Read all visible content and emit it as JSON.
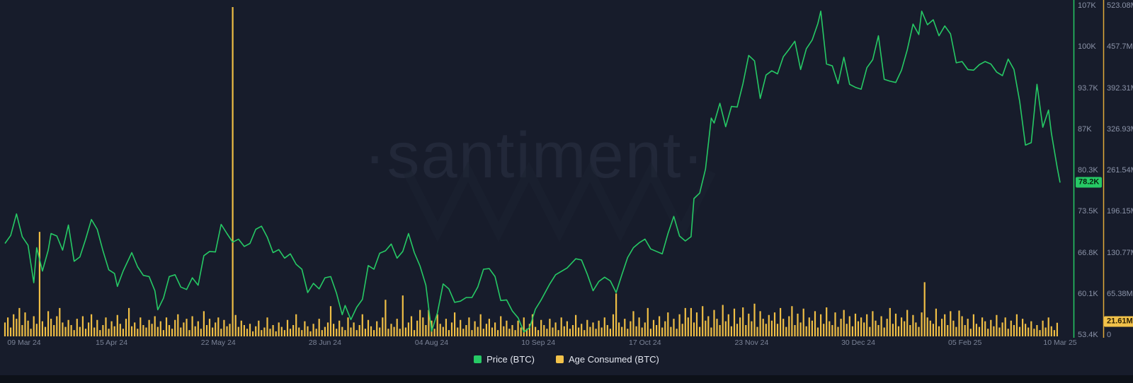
{
  "watermark": "·santiment·",
  "colors": {
    "background": "#171c2b",
    "price_line": "#26c965",
    "age_bar": "#efbe45",
    "price_axis_line": "#26c965",
    "age_axis_line": "#dfa93a",
    "axis_text": "#8b93a8",
    "legend_text": "#e4e7f0"
  },
  "legend": {
    "items": [
      {
        "label": "Price (BTC)",
        "color": "#26c965"
      },
      {
        "label": "Age Consumed (BTC)",
        "color": "#f2c24a"
      }
    ]
  },
  "chart_data": {
    "type": "line+bar",
    "title": "",
    "x_axis": {
      "tick_labels": [
        "09 Mar 24",
        "15 Apr 24",
        "22 May 24",
        "28 Jun 24",
        "04 Aug 24",
        "10 Sep 24",
        "17 Oct 24",
        "23 Nov 24",
        "30 Dec 24",
        "05 Feb 25",
        "10 Mar 25"
      ],
      "tick_day_offsets": [
        0,
        37,
        74,
        111,
        148,
        185,
        222,
        259,
        296,
        333,
        366
      ],
      "total_days": 366
    },
    "price_axis": {
      "tick_labels": [
        "107K",
        "100K",
        "93.7K",
        "87K",
        "80.3K",
        "73.5K",
        "66.8K",
        "60.1K",
        "53.4K"
      ],
      "tick_values": [
        107,
        100,
        93.7,
        87,
        80.3,
        73.5,
        66.8,
        60.1,
        53.4
      ],
      "current_label": "78.2K",
      "current_value": 78.2,
      "unit": "K USD"
    },
    "age_axis": {
      "tick_labels": [
        "523.08M",
        "457.7M",
        "392.31M",
        "326.93M",
        "261.54M",
        "196.15M",
        "130.77M",
        "65.38M",
        "0"
      ],
      "tick_values": [
        523.08,
        457.7,
        392.31,
        326.93,
        261.54,
        196.15,
        130.77,
        65.38,
        0
      ],
      "current_label": "21.61M",
      "current_value": 21.61,
      "unit": "M"
    },
    "series": [
      {
        "name": "Price (BTC)",
        "type": "line",
        "points_day_value_K": [
          [
            0,
            68.3
          ],
          [
            2,
            69.6
          ],
          [
            4,
            73.1
          ],
          [
            6,
            69.4
          ],
          [
            8,
            68.0
          ],
          [
            10,
            61.9
          ],
          [
            11,
            67.6
          ],
          [
            13,
            63.8
          ],
          [
            15,
            67.2
          ],
          [
            16,
            69.9
          ],
          [
            18,
            69.5
          ],
          [
            20,
            67.2
          ],
          [
            22,
            71.3
          ],
          [
            24,
            65.4
          ],
          [
            26,
            66.1
          ],
          [
            28,
            69.0
          ],
          [
            30,
            72.2
          ],
          [
            32,
            70.6
          ],
          [
            34,
            67.1
          ],
          [
            36,
            64.0
          ],
          [
            38,
            63.4
          ],
          [
            39,
            61.3
          ],
          [
            41,
            63.8
          ],
          [
            44,
            66.8
          ],
          [
            46,
            64.5
          ],
          [
            48,
            63.1
          ],
          [
            50,
            62.9
          ],
          [
            52,
            60.6
          ],
          [
            53,
            57.5
          ],
          [
            55,
            59.4
          ],
          [
            57,
            62.9
          ],
          [
            59,
            63.2
          ],
          [
            61,
            61.2
          ],
          [
            63,
            60.8
          ],
          [
            65,
            62.7
          ],
          [
            67,
            61.5
          ],
          [
            69,
            66.3
          ],
          [
            71,
            67.0
          ],
          [
            73,
            66.9
          ],
          [
            75,
            71.4
          ],
          [
            77,
            69.9
          ],
          [
            79,
            68.5
          ],
          [
            81,
            69.0
          ],
          [
            83,
            67.8
          ],
          [
            85,
            68.3
          ],
          [
            87,
            70.6
          ],
          [
            89,
            71.1
          ],
          [
            91,
            69.3
          ],
          [
            93,
            66.8
          ],
          [
            95,
            67.3
          ],
          [
            97,
            65.9
          ],
          [
            99,
            66.6
          ],
          [
            101,
            64.9
          ],
          [
            103,
            64.1
          ],
          [
            105,
            60.3
          ],
          [
            107,
            61.8
          ],
          [
            109,
            60.9
          ],
          [
            111,
            62.7
          ],
          [
            113,
            62.9
          ],
          [
            115,
            60.2
          ],
          [
            117,
            56.7
          ],
          [
            118,
            58.2
          ],
          [
            120,
            55.9
          ],
          [
            122,
            57.9
          ],
          [
            124,
            59.2
          ],
          [
            126,
            64.7
          ],
          [
            128,
            64.1
          ],
          [
            130,
            66.7
          ],
          [
            132,
            67.1
          ],
          [
            134,
            68.2
          ],
          [
            136,
            65.9
          ],
          [
            138,
            67.0
          ],
          [
            140,
            69.9
          ],
          [
            142,
            66.8
          ],
          [
            144,
            64.6
          ],
          [
            146,
            61.5
          ],
          [
            148,
            54.0
          ],
          [
            150,
            57.0
          ],
          [
            152,
            61.7
          ],
          [
            154,
            60.9
          ],
          [
            156,
            58.7
          ],
          [
            158,
            58.9
          ],
          [
            160,
            59.5
          ],
          [
            162,
            59.5
          ],
          [
            164,
            61.2
          ],
          [
            166,
            64.1
          ],
          [
            168,
            64.2
          ],
          [
            170,
            62.9
          ],
          [
            172,
            59.0
          ],
          [
            174,
            59.1
          ],
          [
            176,
            57.3
          ],
          [
            178,
            56.2
          ],
          [
            180,
            53.9
          ],
          [
            182,
            54.6
          ],
          [
            184,
            57.6
          ],
          [
            186,
            59.1
          ],
          [
            189,
            61.7
          ],
          [
            191,
            63.2
          ],
          [
            195,
            64.3
          ],
          [
            198,
            65.8
          ],
          [
            200,
            65.6
          ],
          [
            202,
            63.3
          ],
          [
            204,
            60.6
          ],
          [
            206,
            62.1
          ],
          [
            208,
            62.8
          ],
          [
            210,
            62.2
          ],
          [
            212,
            60.3
          ],
          [
            214,
            63.2
          ],
          [
            216,
            66.0
          ],
          [
            218,
            67.6
          ],
          [
            220,
            68.4
          ],
          [
            222,
            69.0
          ],
          [
            224,
            67.4
          ],
          [
            226,
            67.0
          ],
          [
            228,
            66.6
          ],
          [
            230,
            69.9
          ],
          [
            232,
            72.7
          ],
          [
            234,
            69.5
          ],
          [
            236,
            68.7
          ],
          [
            238,
            69.4
          ],
          [
            239,
            75.6
          ],
          [
            241,
            76.5
          ],
          [
            243,
            80.4
          ],
          [
            245,
            88.7
          ],
          [
            246,
            87.9
          ],
          [
            248,
            91.1
          ],
          [
            250,
            87.3
          ],
          [
            252,
            90.6
          ],
          [
            254,
            90.5
          ],
          [
            256,
            94.3
          ],
          [
            258,
            98.9
          ],
          [
            260,
            98.0
          ],
          [
            262,
            91.9
          ],
          [
            264,
            95.7
          ],
          [
            266,
            96.4
          ],
          [
            268,
            95.9
          ],
          [
            270,
            98.7
          ],
          [
            272,
            99.9
          ],
          [
            274,
            101.2
          ],
          [
            276,
            96.6
          ],
          [
            278,
            100.0
          ],
          [
            280,
            101.4
          ],
          [
            282,
            104.1
          ],
          [
            283,
            106.1
          ],
          [
            285,
            97.5
          ],
          [
            287,
            97.2
          ],
          [
            289,
            94.3
          ],
          [
            291,
            98.6
          ],
          [
            293,
            94.2
          ],
          [
            295,
            93.7
          ],
          [
            297,
            93.4
          ],
          [
            299,
            96.9
          ],
          [
            301,
            98.2
          ],
          [
            303,
            102.1
          ],
          [
            305,
            95.0
          ],
          [
            307,
            94.7
          ],
          [
            309,
            94.5
          ],
          [
            311,
            96.5
          ],
          [
            313,
            99.8
          ],
          [
            315,
            104.0
          ],
          [
            317,
            102.3
          ],
          [
            318,
            106.1
          ],
          [
            320,
            103.9
          ],
          [
            322,
            104.7
          ],
          [
            324,
            102.1
          ],
          [
            326,
            103.7
          ],
          [
            328,
            102.4
          ],
          [
            330,
            97.7
          ],
          [
            332,
            97.9
          ],
          [
            334,
            96.6
          ],
          [
            336,
            96.5
          ],
          [
            338,
            97.4
          ],
          [
            340,
            97.9
          ],
          [
            342,
            97.5
          ],
          [
            344,
            96.2
          ],
          [
            346,
            95.6
          ],
          [
            348,
            98.3
          ],
          [
            350,
            96.6
          ],
          [
            352,
            91.4
          ],
          [
            354,
            84.3
          ],
          [
            356,
            84.7
          ],
          [
            358,
            94.2
          ],
          [
            360,
            87.2
          ],
          [
            362,
            90.0
          ],
          [
            363,
            86.2
          ],
          [
            365,
            80.7
          ],
          [
            366,
            78.2
          ]
        ]
      },
      {
        "name": "Age Consumed (BTC)",
        "type": "bar",
        "daily_values_M": [
          22,
          30,
          14,
          35,
          28,
          45,
          18,
          38,
          25,
          12,
          32,
          20,
          166,
          24,
          15,
          40,
          28,
          18,
          32,
          45,
          22,
          15,
          26,
          18,
          10,
          28,
          15,
          32,
          12,
          22,
          35,
          14,
          26,
          10,
          18,
          30,
          12,
          24,
          16,
          34,
          20,
          12,
          28,
          45,
          16,
          22,
          12,
          30,
          18,
          14,
          26,
          20,
          32,
          15,
          24,
          10,
          30,
          18,
          12,
          26,
          35,
          14,
          22,
          28,
          10,
          32,
          16,
          24,
          12,
          40,
          18,
          28,
          14,
          22,
          30,
          12,
          26,
          16,
          20,
          523.08,
          34,
          15,
          25,
          18,
          12,
          20,
          8,
          16,
          25,
          10,
          14,
          30,
          12,
          18,
          8,
          22,
          15,
          10,
          26,
          12,
          18,
          35,
          14,
          10,
          24,
          16,
          8,
          20,
          12,
          28,
          10,
          15,
          22,
          48,
          20,
          12,
          25,
          15,
          10,
          30,
          14,
          22,
          10,
          18,
          35,
          12,
          26,
          16,
          10,
          24,
          14,
          30,
          58,
          12,
          20,
          15,
          28,
          12,
          65,
          14,
          22,
          32,
          10,
          25,
          42,
          30,
          18,
          42,
          25,
          12,
          35,
          20,
          15,
          28,
          10,
          22,
          38,
          14,
          26,
          12,
          18,
          30,
          10,
          24,
          15,
          35,
          12,
          20,
          28,
          14,
          22,
          10,
          32,
          16,
          25,
          12,
          18,
          10,
          25,
          14,
          30,
          12,
          20,
          35,
          15,
          10,
          26,
          18,
          12,
          28,
          14,
          22,
          10,
          30,
          16,
          24,
          12,
          18,
          34,
          14,
          20,
          10,
          26,
          15,
          22,
          12,
          25,
          14,
          30,
          18,
          12,
          35,
          68,
          22,
          15,
          28,
          12,
          24,
          40,
          16,
          30,
          14,
          22,
          45,
          12,
          26,
          18,
          32,
          14,
          24,
          38,
          15,
          28,
          12,
          35,
          20,
          45,
          30,
          45,
          22,
          38,
          15,
          48,
          25,
          32,
          14,
          42,
          28,
          18,
          50,
          24,
          35,
          16,
          44,
          20,
          30,
          46,
          18,
          36,
          24,
          52,
          15,
          40,
          28,
          20,
          34,
          25,
          38,
          20,
          45,
          28,
          15,
          32,
          48,
          18,
          36,
          22,
          44,
          16,
          30,
          25,
          40,
          14,
          35,
          20,
          46,
          24,
          18,
          38,
          15,
          28,
          42,
          20,
          32,
          16,
          36,
          24,
          30,
          22,
          35,
          15,
          40,
          25,
          18,
          32,
          14,
          28,
          45,
          20,
          36,
          16,
          30,
          24,
          42,
          18,
          34,
          22,
          15,
          38,
          86,
          30,
          25,
          20,
          44,
          16,
          28,
          35,
          18,
          40,
          25,
          15,
          41,
          32,
          18,
          28,
          12,
          35,
          20,
          15,
          30,
          24,
          12,
          26,
          16,
          34,
          14,
          22,
          30,
          12,
          25,
          18,
          35,
          15,
          28,
          20,
          14,
          24,
          12,
          18,
          10,
          25,
          14,
          30,
          16,
          10,
          21.61
        ]
      }
    ],
    "layout_hints": {
      "grid": false,
      "legend_position": "bottom-center",
      "price_axis_side": "right-inner",
      "age_axis_side": "right-outer"
    }
  }
}
